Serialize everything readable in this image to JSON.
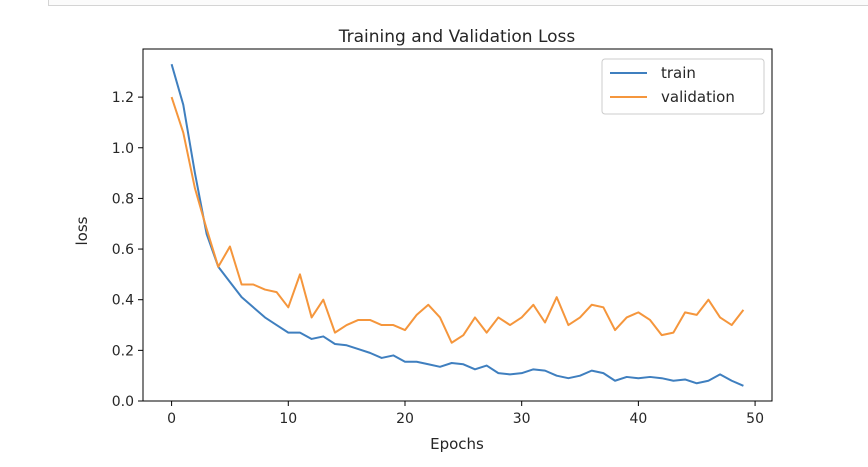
{
  "chart_data": {
    "type": "line",
    "title": "Training and Validation Loss",
    "xlabel": "Epochs",
    "ylabel": "loss",
    "xlim": [
      -2.45,
      51.45
    ],
    "ylim": [
      0.0,
      1.39
    ],
    "xticks": [
      0,
      10,
      20,
      30,
      40,
      50
    ],
    "yticks": [
      0.0,
      0.2,
      0.4,
      0.6,
      0.8,
      1.0,
      1.2
    ],
    "xtick_labels": [
      "0",
      "10",
      "20",
      "30",
      "40",
      "50"
    ],
    "ytick_labels": [
      "0.0",
      "0.2",
      "0.4",
      "0.6",
      "0.8",
      "1.0",
      "1.2"
    ],
    "grid": false,
    "legend_position": "top-right",
    "x": [
      0,
      1,
      2,
      3,
      4,
      5,
      6,
      7,
      8,
      9,
      10,
      11,
      12,
      13,
      14,
      15,
      16,
      17,
      18,
      19,
      20,
      21,
      22,
      23,
      24,
      25,
      26,
      27,
      28,
      29,
      30,
      31,
      32,
      33,
      34,
      35,
      36,
      37,
      38,
      39,
      40,
      41,
      42,
      43,
      44,
      45,
      46,
      47,
      48,
      49
    ],
    "series": [
      {
        "name": "train",
        "color": "#3f7fbf",
        "values": [
          1.33,
          1.17,
          0.9,
          0.66,
          0.53,
          0.47,
          0.41,
          0.37,
          0.33,
          0.3,
          0.27,
          0.27,
          0.245,
          0.255,
          0.225,
          0.22,
          0.205,
          0.19,
          0.17,
          0.18,
          0.155,
          0.155,
          0.145,
          0.135,
          0.15,
          0.145,
          0.125,
          0.14,
          0.11,
          0.105,
          0.11,
          0.125,
          0.12,
          0.1,
          0.09,
          0.1,
          0.12,
          0.11,
          0.08,
          0.095,
          0.09,
          0.095,
          0.09,
          0.08,
          0.085,
          0.07,
          0.08,
          0.105,
          0.08,
          0.06
        ]
      },
      {
        "name": "validation",
        "color": "#f5963c",
        "values": [
          1.2,
          1.06,
          0.84,
          0.68,
          0.53,
          0.61,
          0.46,
          0.46,
          0.44,
          0.43,
          0.37,
          0.5,
          0.33,
          0.4,
          0.27,
          0.3,
          0.32,
          0.32,
          0.3,
          0.3,
          0.28,
          0.34,
          0.38,
          0.33,
          0.23,
          0.26,
          0.33,
          0.27,
          0.33,
          0.3,
          0.33,
          0.38,
          0.31,
          0.41,
          0.3,
          0.33,
          0.38,
          0.37,
          0.28,
          0.33,
          0.35,
          0.32,
          0.26,
          0.27,
          0.35,
          0.34,
          0.4,
          0.33,
          0.3,
          0.36
        ]
      }
    ]
  }
}
